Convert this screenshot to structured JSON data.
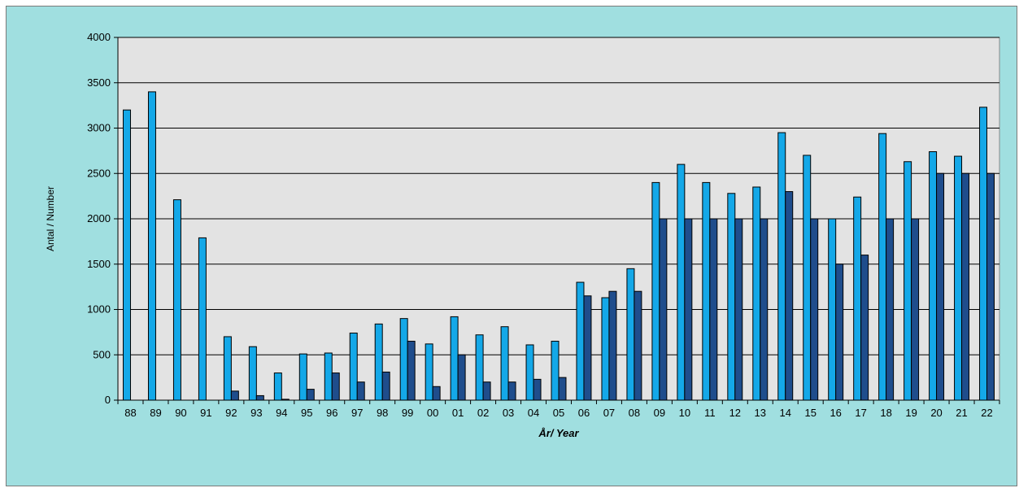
{
  "colors": {
    "background": "#a0dfe0",
    "plot_area": "#e3e3e3",
    "series_a": "#14a8e8",
    "series_b": "#1f4d8c",
    "grid": "#000000"
  },
  "chart_data": {
    "type": "bar",
    "title": "",
    "xlabel": "År/ Year",
    "ylabel": "Antal / Number",
    "ylim": [
      0,
      4000
    ],
    "yticks": [
      0,
      500,
      1000,
      1500,
      2000,
      2500,
      3000,
      3500,
      4000
    ],
    "grid": true,
    "legend": "none",
    "categories": [
      "88",
      "89",
      "90",
      "91",
      "92",
      "93",
      "94",
      "95",
      "96",
      "97",
      "98",
      "99",
      "00",
      "01",
      "02",
      "03",
      "04",
      "05",
      "06",
      "07",
      "08",
      "09",
      "10",
      "11",
      "12",
      "13",
      "14",
      "15",
      "16",
      "17",
      "18",
      "19",
      "20",
      "21",
      "22"
    ],
    "series": [
      {
        "values": [
          3200,
          3400,
          2210,
          1790,
          700,
          590,
          300,
          510,
          520,
          740,
          840,
          900,
          620,
          920,
          720,
          810,
          610,
          650,
          1300,
          1130,
          1450,
          2400,
          2600,
          2400,
          2280,
          2350,
          2950,
          2700,
          2000,
          2240,
          2940,
          2630,
          2740,
          2690,
          3230
        ]
      },
      {
        "values": [
          0,
          0,
          0,
          0,
          100,
          50,
          10,
          120,
          300,
          200,
          310,
          650,
          150,
          500,
          200,
          200,
          230,
          250,
          1150,
          1200,
          1200,
          2000,
          2000,
          2000,
          2000,
          2000,
          2300,
          2000,
          1500,
          1600,
          2000,
          2000,
          2500,
          2500,
          2500
        ]
      }
    ]
  }
}
